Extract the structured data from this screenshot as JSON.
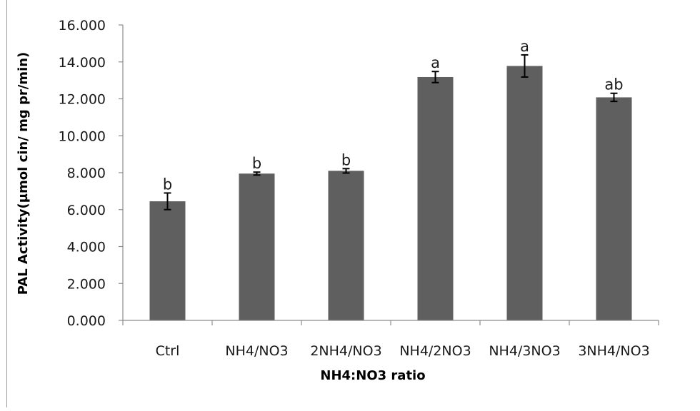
{
  "chart_data": {
    "type": "bar",
    "title": "",
    "xlabel": "NH4:NO3 ratio",
    "ylabel": "PAL Activity(µmol cin/ mg pr/min)",
    "categories": [
      "Ctrl",
      "NH4/NO3",
      "2NH4/NO3",
      "NH4/2NO3",
      "NH4/3NO3",
      "3NH4/NO3"
    ],
    "values": [
      6.45,
      7.95,
      8.1,
      13.18,
      13.78,
      12.08
    ],
    "errors": [
      0.45,
      0.08,
      0.12,
      0.3,
      0.6,
      0.22
    ],
    "significance_labels": [
      "b",
      "b",
      "b",
      "a",
      "a",
      "ab"
    ],
    "ylim": [
      0,
      16
    ],
    "yticks": [
      "0.000",
      "2.000",
      "4.000",
      "6.000",
      "8.000",
      "10.000",
      "12.000",
      "14.000",
      "16.000"
    ],
    "grid": false,
    "legend": "none",
    "bar_color": "#5f5f5f"
  }
}
